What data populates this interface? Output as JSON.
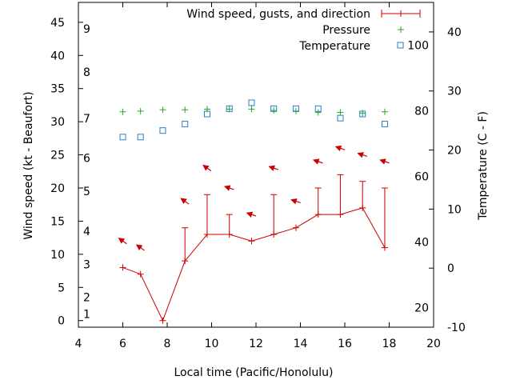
{
  "chart_data": {
    "type": "line",
    "xlabel": "Local time (Pacific/Honolulu)",
    "ylabel_left": "Wind speed (kt - Beaufort)",
    "ylabel_right": "Temperature (C - F)",
    "xlim": [
      4,
      20
    ],
    "ylim_left": [
      -1,
      48
    ],
    "ylim_right": [
      -10,
      45
    ],
    "x_ticks": [
      "4",
      "6",
      "8",
      "10",
      "12",
      "14",
      "16",
      "18",
      "20"
    ],
    "y_ticks_left": [
      "0",
      "5",
      "10",
      "15",
      "20",
      "25",
      "30",
      "35",
      "40",
      "45"
    ],
    "y_ticks_right": [
      "-10",
      "0",
      "10",
      "20",
      "30",
      "40"
    ],
    "fahrenheit_labels": [
      "20",
      "40",
      "60",
      "80",
      "100"
    ],
    "beaufort_labels": [
      "1",
      "2",
      "3",
      "4",
      "5",
      "6",
      "7",
      "8",
      "9"
    ],
    "legend": {
      "position": "top-right",
      "wind": "Wind speed, gusts, and direction",
      "pressure": "Pressure",
      "temperature": "Temperature"
    },
    "colors": {
      "wind": "#cc0000",
      "pressure": "#22aa22",
      "temperature": "#2a7fc4"
    },
    "wind": [
      {
        "t": 6.0,
        "speed": 8,
        "gust": 8
      },
      {
        "t": 6.8,
        "speed": 7,
        "gust": 7
      },
      {
        "t": 7.8,
        "speed": 0,
        "gust": 0
      },
      {
        "t": 8.8,
        "speed": 9,
        "gust": 14
      },
      {
        "t": 9.8,
        "speed": 13,
        "gust": 19
      },
      {
        "t": 10.8,
        "speed": 13,
        "gust": 16
      },
      {
        "t": 11.8,
        "speed": 12,
        "gust": 12
      },
      {
        "t": 12.8,
        "speed": 13,
        "gust": 19
      },
      {
        "t": 13.8,
        "speed": 14,
        "gust": 14
      },
      {
        "t": 14.8,
        "speed": 16,
        "gust": 20
      },
      {
        "t": 15.8,
        "speed": 16,
        "gust": 22
      },
      {
        "t": 16.8,
        "speed": 17,
        "gust": 21
      },
      {
        "t": 17.8,
        "speed": 11,
        "gust": 20
      }
    ],
    "direction_arrows": [
      {
        "t": 6.0,
        "y": 12,
        "dir": "nw"
      },
      {
        "t": 6.8,
        "y": 11,
        "dir": "nw"
      },
      {
        "t": 8.8,
        "y": 18,
        "dir": "nw"
      },
      {
        "t": 9.8,
        "y": 23,
        "dir": "nw"
      },
      {
        "t": 10.8,
        "y": 20,
        "dir": "w"
      },
      {
        "t": 11.8,
        "y": 16,
        "dir": "w"
      },
      {
        "t": 12.8,
        "y": 23,
        "dir": "w"
      },
      {
        "t": 13.8,
        "y": 18,
        "dir": "w"
      },
      {
        "t": 14.8,
        "y": 24,
        "dir": "w"
      },
      {
        "t": 15.8,
        "y": 26,
        "dir": "w"
      },
      {
        "t": 16.8,
        "y": 25,
        "dir": "w"
      },
      {
        "t": 17.8,
        "y": 24,
        "dir": "w"
      }
    ],
    "pressure": [
      {
        "t": 6.0,
        "y": 31.5
      },
      {
        "t": 6.8,
        "y": 31.6
      },
      {
        "t": 7.8,
        "y": 31.8
      },
      {
        "t": 8.8,
        "y": 31.8
      },
      {
        "t": 9.8,
        "y": 31.9
      },
      {
        "t": 10.8,
        "y": 31.9
      },
      {
        "t": 11.8,
        "y": 31.9
      },
      {
        "t": 12.8,
        "y": 31.7
      },
      {
        "t": 13.8,
        "y": 31.6
      },
      {
        "t": 14.8,
        "y": 31.4
      },
      {
        "t": 15.8,
        "y": 31.4
      },
      {
        "t": 16.8,
        "y": 31.3
      },
      {
        "t": 17.8,
        "y": 31.5
      }
    ],
    "temperature_c": [
      {
        "t": 6.0,
        "c": 22.2
      },
      {
        "t": 6.8,
        "c": 22.2
      },
      {
        "t": 7.8,
        "c": 23.3
      },
      {
        "t": 8.8,
        "c": 24.4
      },
      {
        "t": 9.8,
        "c": 26.1
      },
      {
        "t": 10.8,
        "c": 27.0
      },
      {
        "t": 11.8,
        "c": 28.0
      },
      {
        "t": 12.8,
        "c": 27.0
      },
      {
        "t": 13.8,
        "c": 27.0
      },
      {
        "t": 14.8,
        "c": 27.0
      },
      {
        "t": 15.8,
        "c": 25.4
      },
      {
        "t": 16.8,
        "c": 26.1
      },
      {
        "t": 17.8,
        "c": 24.4
      }
    ]
  }
}
